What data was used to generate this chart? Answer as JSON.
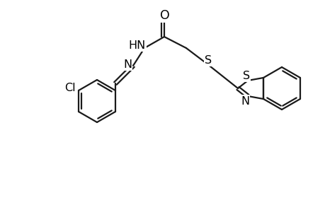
{
  "bg_color": "#ffffff",
  "line_color": "#1a1a1a",
  "line_width": 1.6,
  "font_size": 11.5,
  "figsize": [
    4.6,
    3.0
  ],
  "dpi": 100,
  "xlim": [
    0,
    460
  ],
  "ylim": [
    0,
    300
  ]
}
